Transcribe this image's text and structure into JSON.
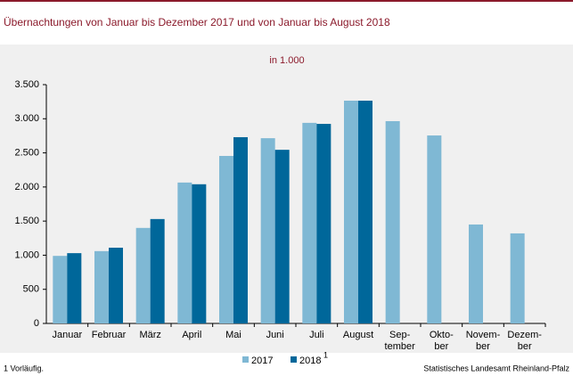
{
  "chart_data": {
    "type": "bar",
    "title": "Übernachtungen von Januar bis Dezember 2017 und von Januar bis August 2018",
    "subtitle": "in 1.000",
    "categories": [
      "Januar",
      "Februar",
      "März",
      "April",
      "Mai",
      "Juni",
      "Juli",
      "August",
      "Sep-\ntember",
      "Okto-\nber",
      "Novem-\nber",
      "Dezem-\nber"
    ],
    "series": [
      {
        "name": "2017",
        "color": "#7fb8d4",
        "values": [
          990,
          1060,
          1400,
          2065,
          2455,
          2715,
          2940,
          3265,
          2965,
          2755,
          1450,
          1320
        ]
      },
      {
        "name": "2018",
        "color": "#00679a",
        "values": [
          1030,
          1110,
          1530,
          2040,
          2730,
          2545,
          2925,
          3265,
          null,
          null,
          null,
          null
        ]
      }
    ],
    "legend_note_marker": "1",
    "ylim": [
      0,
      3500
    ],
    "yticks": [
      0,
      500,
      {
        "value": 1000,
        "label": "1.000"
      },
      {
        "value": 1500,
        "label": "1.500"
      },
      {
        "value": 2000,
        "label": "2.000"
      },
      {
        "value": 2500,
        "label": "2.500"
      },
      {
        "value": 3000,
        "label": "3.000"
      },
      {
        "value": 3500,
        "label": "3.500"
      }
    ],
    "grid": false,
    "footnote": "1 Vorläufig.",
    "source": "Statistisches Landesamt Rheinland-Pfalz"
  }
}
